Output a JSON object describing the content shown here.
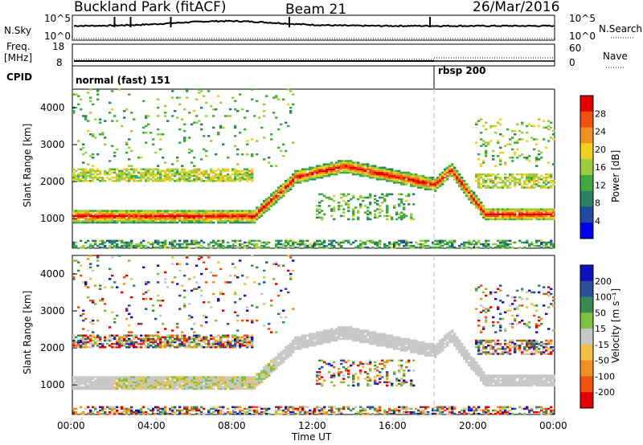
{
  "header": {
    "site": "Buckland Park (fitACF)",
    "beam": "Beam 21",
    "date": "26/Mar/2016"
  },
  "top_panels": {
    "nsky_label": "N.Sky",
    "nsky_ticks": [
      "10^5",
      "10^0"
    ],
    "nsearch_label": "N.Search",
    "nsearch_ticks": [
      "10^5",
      "10^0"
    ],
    "freq_label": "Freq.",
    "freq_unit": "[MHz]",
    "freq_ticks": [
      "18",
      "8"
    ],
    "nave_label": "Nave",
    "nave_ticks": [
      "60",
      "0"
    ],
    "cpid_label": "CPID",
    "modes": [
      {
        "name": "normal (fast) 151",
        "start_hour": 0
      },
      {
        "name": "rbsp 200",
        "start_hour": 18
      }
    ]
  },
  "colors": {
    "power": [
      "#0000ee",
      "#1f4ba0",
      "#2a8060",
      "#3fa840",
      "#9ccc40",
      "#f0d020",
      "#f09020",
      "#f05010",
      "#e00000"
    ],
    "velocity": [
      "#e00000",
      "#f05010",
      "#f09020",
      "#f0c040",
      "#c8c8c8",
      "#80c040",
      "#3a8a50",
      "#2a4f9c",
      "#1010c0"
    ]
  },
  "chart_data": [
    {
      "type": "heatmap",
      "name": "power-panel",
      "xlabel": "",
      "ylabel": "Slant Range [km]",
      "xlim": [
        0,
        24
      ],
      "ylim": [
        200,
        4500
      ],
      "yticks": [
        "1000",
        "2000",
        "3000",
        "4000"
      ],
      "colorbar_label": "Power [dB]",
      "colorbar_ticks": [
        "4",
        "8",
        "12",
        "16",
        "20",
        "24",
        "28"
      ],
      "colorbar_range": [
        0,
        30
      ],
      "grid": false
    },
    {
      "type": "heatmap",
      "name": "velocity-panel",
      "xlabel": "Time UT",
      "ylabel": "Slant Range [km]",
      "xlim": [
        0,
        24
      ],
      "ylim": [
        200,
        4500
      ],
      "xticks": [
        "00:00",
        "04:00",
        "08:00",
        "12:00",
        "16:00",
        "20:00",
        "00:00"
      ],
      "yticks": [
        "1000",
        "2000",
        "3000",
        "4000"
      ],
      "colorbar_label": "Velocity [m s⁻¹]",
      "colorbar_ticks": [
        "200",
        "100",
        "50",
        "15",
        "-15",
        "-50",
        "-100",
        "-200"
      ],
      "grid": false
    }
  ]
}
